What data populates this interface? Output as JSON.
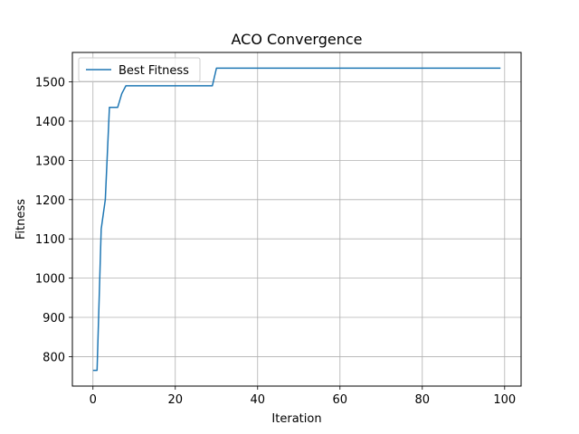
{
  "chart_data": {
    "type": "line",
    "title": "ACO Convergence",
    "xlabel": "Iteration",
    "ylabel": "Fitness",
    "xlim": [
      -5,
      104
    ],
    "ylim": [
      725,
      1575
    ],
    "xticks": [
      0,
      20,
      40,
      60,
      80,
      100
    ],
    "yticks": [
      800,
      900,
      1000,
      1100,
      1200,
      1300,
      1400,
      1500
    ],
    "grid": true,
    "legend_position": "top-left",
    "series": [
      {
        "name": "Best Fitness",
        "color": "#1f77b4",
        "x": [
          0,
          1,
          2,
          3,
          4,
          5,
          6,
          7,
          8,
          9,
          10,
          15,
          20,
          25,
          29,
          30,
          40,
          50,
          60,
          70,
          80,
          90,
          99
        ],
        "y": [
          765,
          765,
          1125,
          1200,
          1435,
          1435,
          1435,
          1470,
          1490,
          1490,
          1490,
          1490,
          1490,
          1490,
          1490,
          1535,
          1535,
          1535,
          1535,
          1535,
          1535,
          1535,
          1535
        ]
      }
    ]
  }
}
